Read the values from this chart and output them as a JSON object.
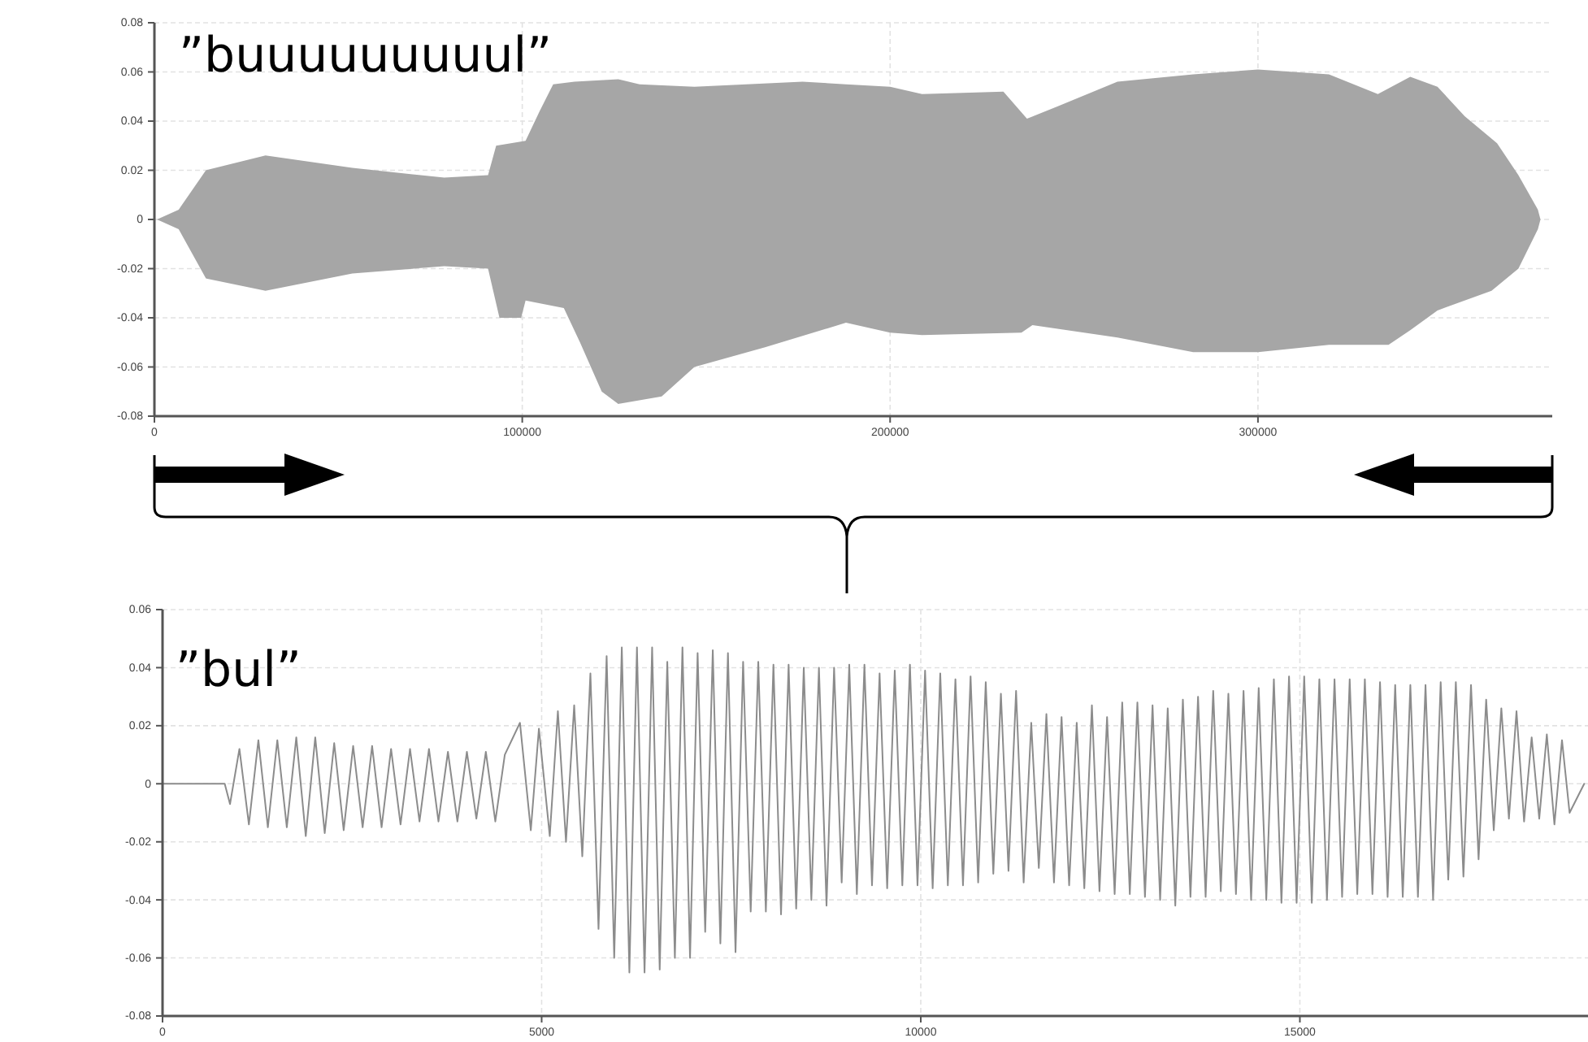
{
  "chart_data": [
    {
      "type": "area",
      "annotations": [
        "”buuuuuuuuul”"
      ],
      "xlim": [
        0,
        380000
      ],
      "xticks": [
        0,
        100000,
        200000,
        300000
      ],
      "ylim": [
        -0.08,
        0.08
      ],
      "yticks": [
        -0.08,
        -0.06,
        -0.04,
        -0.02,
        0,
        0.02,
        0.04,
        0.06,
        0.08
      ],
      "grid": true,
      "series": [
        {
          "color": "#a6a6a6",
          "x": [
            700,
            6600,
            14000,
            30200,
            53800,
            78800,
            90700,
            92900,
            100900,
            104700,
            108400,
            114200,
            126100,
            131900,
            146800,
            176200,
            188000,
            200000,
            208700,
            230800,
            237200,
            245600,
            261800,
            282400,
            300000,
            319300,
            332600,
            341400,
            348800,
            356200,
            365000,
            370800,
            376100,
            376800
          ],
          "values": [
            0,
            0.004,
            0.02,
            0.026,
            0.021,
            0.017,
            0.018,
            0.03,
            0.032,
            0.044,
            0.055,
            0.056,
            0.057,
            0.055,
            0.054,
            0.056,
            0.055,
            0.054,
            0.051,
            0.052,
            0.041,
            0.046,
            0.056,
            0.059,
            0.061,
            0.059,
            0.051,
            0.058,
            0.054,
            0.042,
            0.031,
            0.018,
            0.004,
            0
          ]
        },
        {
          "color": "#a6a6a6",
          "x": [
            700,
            6600,
            14000,
            30200,
            53800,
            78800,
            90700,
            93800,
            99700,
            100900,
            111300,
            115700,
            121600,
            126100,
            137900,
            146800,
            166000,
            188000,
            200000,
            208700,
            235700,
            238700,
            261800,
            282400,
            300000,
            319300,
            335500,
            341400,
            348800,
            363500,
            370800,
            376100,
            376800
          ],
          "values": [
            0,
            -0.004,
            -0.024,
            -0.029,
            -0.022,
            -0.019,
            -0.02,
            -0.04,
            -0.04,
            -0.033,
            -0.036,
            -0.05,
            -0.07,
            -0.075,
            -0.072,
            -0.06,
            -0.052,
            -0.042,
            -0.046,
            -0.047,
            -0.046,
            -0.043,
            -0.048,
            -0.054,
            -0.054,
            -0.051,
            -0.051,
            -0.045,
            -0.037,
            -0.029,
            -0.02,
            -0.004,
            0
          ]
        }
      ]
    },
    {
      "type": "line",
      "annotations": [
        "”bul”"
      ],
      "xlim": [
        0,
        18800
      ],
      "xticks": [
        0,
        5000,
        10000,
        15000
      ],
      "ylim": [
        -0.08,
        0.06
      ],
      "yticks": [
        -0.08,
        -0.06,
        -0.04,
        -0.02,
        0,
        0.02,
        0.04,
        0.06
      ],
      "grid": true,
      "series": [
        {
          "color": "#8c8c8c",
          "x": [
            0,
            820,
            890,
            1014,
            1139,
            1264,
            1389,
            1514,
            1639,
            1764,
            1889,
            2014,
            2139,
            2264,
            2389,
            2514,
            2639,
            2764,
            2889,
            3014,
            3139,
            3264,
            3389,
            3514,
            3639,
            3764,
            3889,
            4014,
            4139,
            4264,
            4389,
            4514,
            4714,
            4857,
            4964,
            5107,
            5214,
            5321,
            5429,
            5536,
            5643,
            5750,
            5857,
            5957,
            6057,
            6157,
            6257,
            6357,
            6457,
            6557,
            6657,
            6757,
            6857,
            6957,
            7057,
            7157,
            7257,
            7357,
            7457,
            7557,
            7657,
            7757,
            7857,
            7957,
            8057,
            8157,
            8257,
            8357,
            8457,
            8557,
            8657,
            8757,
            8857,
            8957,
            9057,
            9157,
            9257,
            9357,
            9457,
            9557,
            9657,
            9757,
            9857,
            9957,
            10057,
            10157,
            10257,
            10357,
            10457,
            10557,
            10657,
            10757,
            10857,
            10957,
            11057,
            11157,
            11257,
            11357,
            11457,
            11557,
            11657,
            11757,
            11857,
            11957,
            12057,
            12157,
            12257,
            12357,
            12457,
            12557,
            12657,
            12757,
            12857,
            12957,
            13057,
            13157,
            13257,
            13357,
            13457,
            13557,
            13657,
            13757,
            13857,
            13957,
            14057,
            14157,
            14257,
            14357,
            14457,
            14557,
            14657,
            14757,
            14857,
            14957,
            15057,
            15157,
            15257,
            15357,
            15457,
            15557,
            15657,
            15757,
            15857,
            15957,
            16057,
            16157,
            16257,
            16357,
            16457,
            16557,
            16657,
            16757,
            16857,
            16957,
            17057,
            17157,
            17257,
            17357,
            17457,
            17557,
            17657,
            17757,
            17857,
            17957,
            18057,
            18157,
            18257,
            18357,
            18457,
            18557,
            18750
          ],
          "values": [
            0,
            0,
            -0.007,
            0.012,
            -0.014,
            0.015,
            -0.015,
            0.015,
            -0.015,
            0.016,
            -0.018,
            0.016,
            -0.017,
            0.014,
            -0.016,
            0.013,
            -0.015,
            0.013,
            -0.015,
            0.012,
            -0.014,
            0.012,
            -0.013,
            0.012,
            -0.013,
            0.011,
            -0.013,
            0.011,
            -0.012,
            0.011,
            -0.013,
            0.01,
            0.021,
            -0.016,
            0.019,
            -0.018,
            0.025,
            -0.02,
            0.027,
            -0.025,
            0.038,
            -0.05,
            0.044,
            -0.06,
            0.047,
            -0.065,
            0.047,
            -0.065,
            0.047,
            -0.064,
            0.042,
            -0.06,
            0.047,
            -0.06,
            0.045,
            -0.051,
            0.046,
            -0.055,
            0.045,
            -0.058,
            0.042,
            -0.044,
            0.042,
            -0.044,
            0.041,
            -0.045,
            0.041,
            -0.043,
            0.04,
            -0.04,
            0.04,
            -0.042,
            0.04,
            -0.034,
            0.041,
            -0.038,
            0.041,
            -0.035,
            0.038,
            -0.036,
            0.039,
            -0.035,
            0.041,
            -0.035,
            0.039,
            -0.036,
            0.038,
            -0.035,
            0.036,
            -0.035,
            0.037,
            -0.034,
            0.035,
            -0.031,
            0.031,
            -0.03,
            0.032,
            -0.034,
            0.021,
            -0.029,
            0.024,
            -0.034,
            0.023,
            -0.035,
            0.021,
            -0.036,
            0.027,
            -0.037,
            0.023,
            -0.038,
            0.028,
            -0.038,
            0.028,
            -0.039,
            0.027,
            -0.04,
            0.026,
            -0.042,
            0.029,
            -0.039,
            0.03,
            -0.039,
            0.032,
            -0.037,
            0.031,
            -0.038,
            0.032,
            -0.04,
            0.033,
            -0.04,
            0.036,
            -0.041,
            0.037,
            -0.041,
            0.037,
            -0.041,
            0.036,
            -0.04,
            0.036,
            -0.039,
            0.036,
            -0.038,
            0.036,
            -0.038,
            0.035,
            -0.039,
            0.034,
            -0.039,
            0.034,
            -0.039,
            0.034,
            -0.04,
            0.035,
            -0.033,
            0.035,
            -0.032,
            0.034,
            -0.026,
            0.029,
            -0.016,
            0.026,
            -0.012,
            0.025,
            -0.013,
            0.016,
            -0.012,
            0.017,
            -0.014,
            0.015,
            -0.01,
            0
          ]
        }
      ]
    }
  ]
}
